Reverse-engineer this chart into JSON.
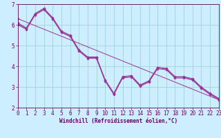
{
  "background_color": "#cceeff",
  "grid_color": "#99cccc",
  "line_color": "#993399",
  "marker_color": "#993399",
  "xlabel": "Windchill (Refroidissement éolien,°C)",
  "xlim": [
    0,
    23
  ],
  "ylim": [
    2,
    7
  ],
  "xticks": [
    0,
    1,
    2,
    3,
    4,
    5,
    6,
    7,
    8,
    9,
    10,
    11,
    12,
    13,
    14,
    15,
    16,
    17,
    18,
    19,
    20,
    21,
    22,
    23
  ],
  "yticks": [
    2,
    3,
    4,
    5,
    6,
    7
  ],
  "series1_x": [
    0,
    1,
    2,
    3,
    4,
    5,
    6,
    7,
    8,
    9,
    10,
    11,
    12,
    13,
    14,
    15,
    16,
    17,
    18,
    19,
    20,
    21,
    22,
    23
  ],
  "series1_y": [
    6.1,
    5.85,
    6.55,
    6.8,
    6.35,
    5.7,
    5.5,
    4.8,
    4.45,
    4.45,
    3.35,
    2.7,
    3.5,
    3.55,
    3.1,
    3.3,
    3.95,
    3.9,
    3.5,
    3.5,
    3.4,
    3.0,
    2.7,
    2.45
  ],
  "series2_x": [
    0,
    1,
    2,
    3,
    4,
    5,
    6,
    7,
    8,
    9,
    10,
    11,
    12,
    13,
    14,
    15,
    16,
    17,
    18,
    19,
    20,
    21,
    22,
    23
  ],
  "series2_y": [
    6.05,
    5.82,
    6.52,
    6.77,
    6.32,
    5.67,
    5.47,
    4.77,
    4.42,
    4.42,
    3.32,
    2.67,
    3.47,
    3.52,
    3.07,
    3.27,
    3.92,
    3.87,
    3.47,
    3.47,
    3.37,
    2.97,
    2.67,
    2.42
  ],
  "series3_x": [
    0,
    1,
    2,
    3,
    4,
    5,
    6,
    7,
    8,
    9,
    10,
    11,
    12,
    13,
    14,
    15,
    16,
    17,
    18,
    19,
    20,
    21,
    22,
    23
  ],
  "series3_y": [
    6.0,
    5.78,
    6.48,
    6.73,
    6.28,
    5.63,
    5.43,
    4.73,
    4.38,
    4.38,
    3.28,
    2.63,
    3.43,
    3.48,
    3.03,
    3.23,
    3.88,
    3.83,
    3.43,
    3.43,
    3.33,
    2.93,
    2.63,
    2.38
  ],
  "series4_x": [
    0,
    23
  ],
  "series4_y": [
    6.3,
    2.38
  ],
  "font_color": "#660066",
  "font_size_label": 5.5,
  "font_size_tick": 5.5
}
